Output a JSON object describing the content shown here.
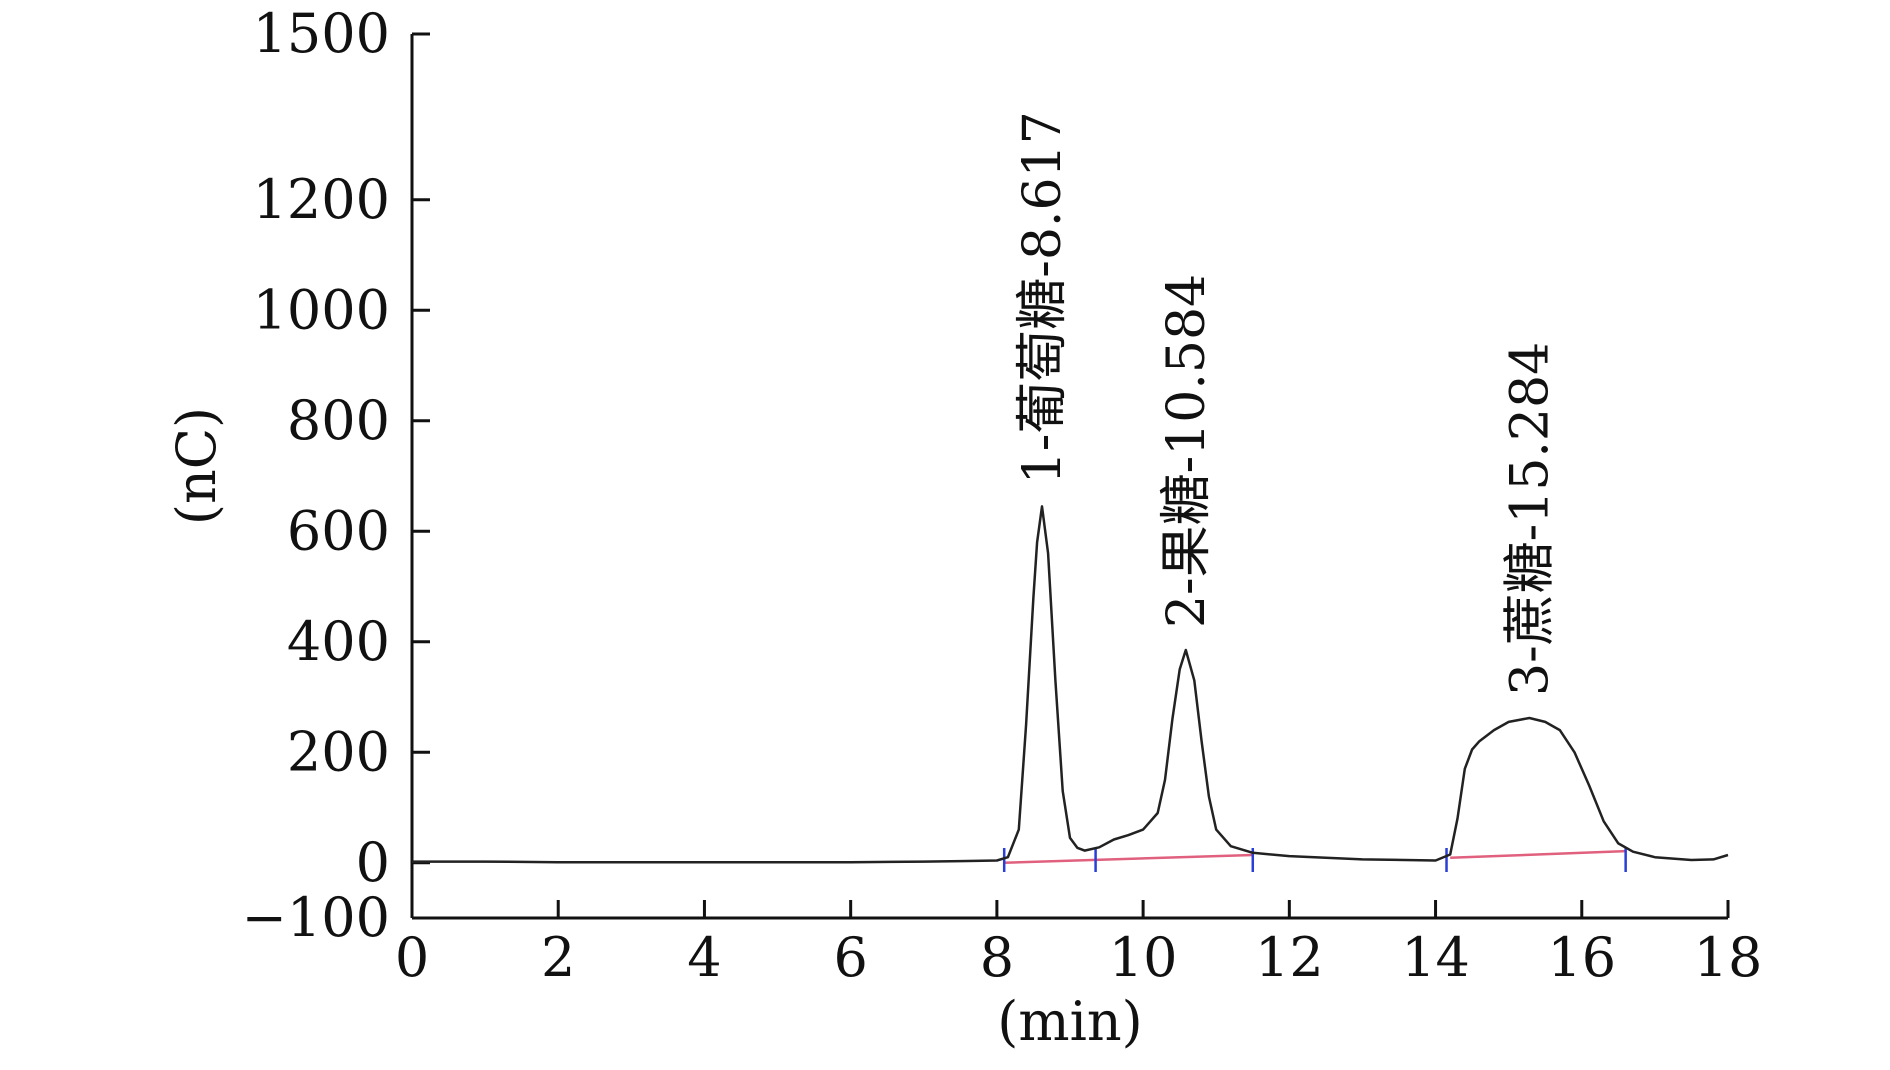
{
  "chart_data": {
    "type": "line",
    "xlabel": "(min)",
    "ylabel": "(nC)",
    "xlim": [
      0,
      18
    ],
    "ylim": [
      -100,
      1500
    ],
    "x_ticks": [
      0,
      2,
      4,
      6,
      8,
      10,
      12,
      14,
      16,
      18
    ],
    "y_ticks": [
      -100,
      0,
      200,
      400,
      600,
      800,
      1000,
      1200,
      1500
    ],
    "y_tick_labels": [
      "−100",
      "0",
      "200",
      "400",
      "600",
      "800",
      "1000",
      "1200",
      "1500"
    ],
    "grid": false,
    "series": [
      {
        "x": [
          0,
          1,
          2,
          3,
          4,
          5,
          6,
          7,
          7.5,
          8,
          8.15,
          8.3,
          8.4,
          8.5,
          8.55,
          8.617,
          8.7,
          8.8,
          8.9,
          9.0,
          9.1,
          9.2,
          9.4,
          9.6,
          9.8,
          10.0,
          10.2,
          10.3,
          10.4,
          10.5,
          10.584,
          10.7,
          10.8,
          10.9,
          11.0,
          11.2,
          11.5,
          12,
          13,
          14,
          14.2,
          14.3,
          14.4,
          14.5,
          14.6,
          14.8,
          15.0,
          15.284,
          15.5,
          15.7,
          15.9,
          16.1,
          16.3,
          16.5,
          16.7,
          17,
          17.5,
          17.8,
          18
        ],
        "y": [
          2,
          2,
          1,
          1,
          1,
          1,
          1,
          2,
          3,
          4,
          10,
          60,
          250,
          480,
          580,
          645,
          560,
          330,
          130,
          45,
          27,
          22,
          28,
          42,
          50,
          60,
          90,
          150,
          260,
          350,
          385,
          330,
          220,
          120,
          60,
          30,
          18,
          12,
          6,
          4,
          15,
          80,
          170,
          205,
          220,
          240,
          255,
          262,
          255,
          240,
          200,
          140,
          75,
          35,
          20,
          10,
          5,
          6,
          14
        ]
      }
    ],
    "peaks": [
      {
        "label": "1-葡萄糖-8.617",
        "x": 8.617,
        "y": 645
      },
      {
        "label": "2-果糖-10.584",
        "x": 10.584,
        "y": 385
      },
      {
        "label": "3-蔗糖-15.284",
        "x": 15.284,
        "y": 262
      }
    ],
    "baseline_segments": [
      {
        "x": [
          8.1,
          11.5
        ],
        "y": [
          0,
          14
        ]
      },
      {
        "x": [
          14.2,
          16.6
        ],
        "y": [
          9,
          21
        ]
      }
    ],
    "integration_markers": [
      8.1,
      9.35,
      11.5,
      14.15,
      16.6
    ],
    "colors": {
      "line": "#222222",
      "baseline": "#e0607e",
      "marker": "#2a3fd6",
      "axis": "#111111"
    }
  }
}
